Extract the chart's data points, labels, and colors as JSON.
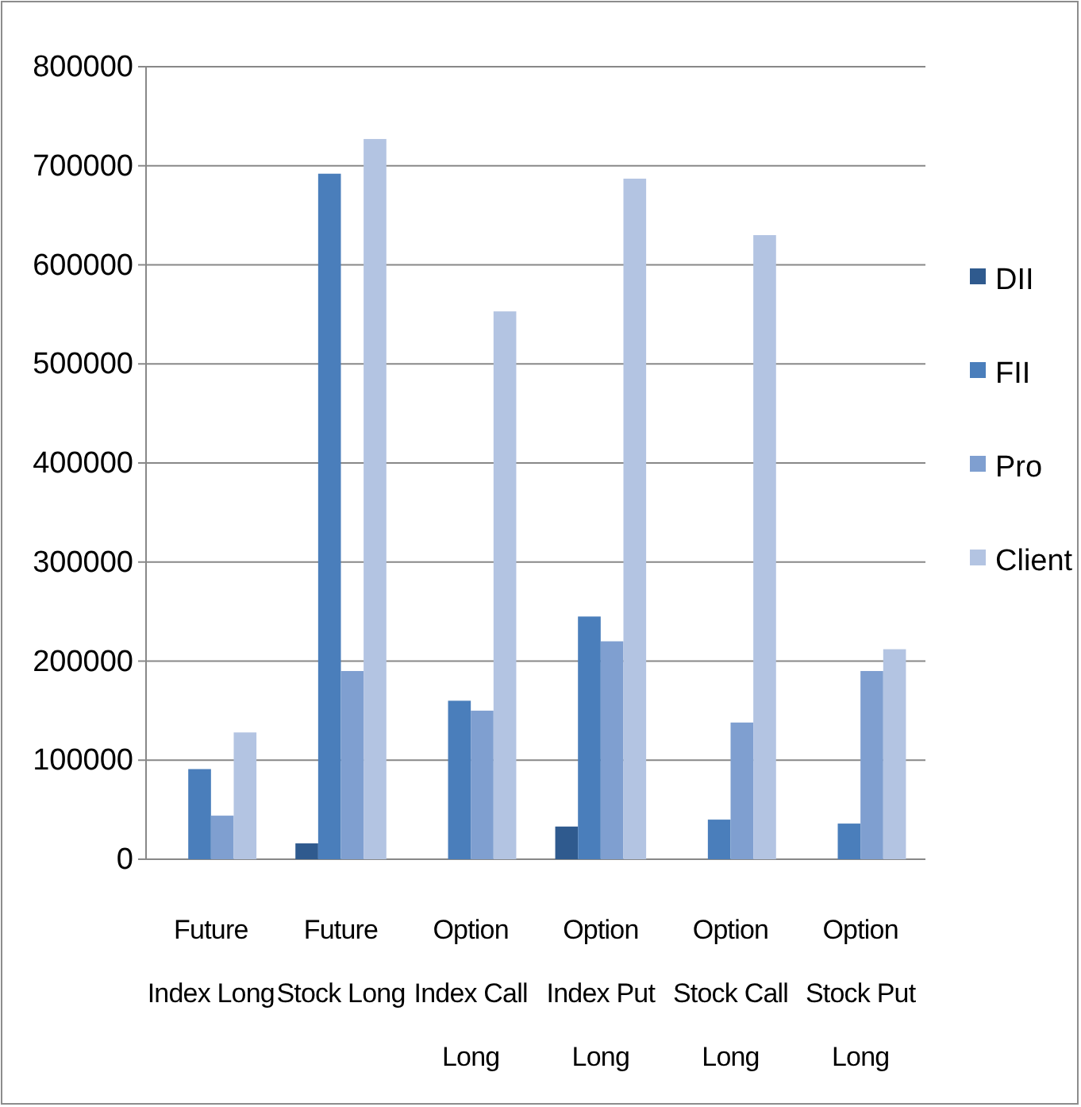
{
  "chart_data": {
    "type": "bar",
    "categories": [
      "Future Index Long",
      "Future Stock Long",
      "Option Index Call Long",
      "Option Index Put Long",
      "Option Stock Call Long",
      "Option Stock Put Long"
    ],
    "series": [
      {
        "name": "DII",
        "color": "#2f5a8e",
        "values": [
          0,
          16000,
          0,
          33000,
          0,
          0
        ]
      },
      {
        "name": "FII",
        "color": "#4a7ebb",
        "values": [
          91000,
          692000,
          160000,
          245000,
          40000,
          36000
        ]
      },
      {
        "name": "Pro",
        "color": "#7f9fd0",
        "values": [
          44000,
          190000,
          150000,
          220000,
          138000,
          190000
        ]
      },
      {
        "name": "Client",
        "color": "#b3c4e2",
        "values": [
          128000,
          727000,
          553000,
          687000,
          630000,
          212000
        ]
      }
    ],
    "ylim": [
      0,
      800000
    ],
    "yticks": [
      0,
      100000,
      200000,
      300000,
      400000,
      500000,
      600000,
      700000,
      800000
    ],
    "grid": "y",
    "legend": "right"
  }
}
